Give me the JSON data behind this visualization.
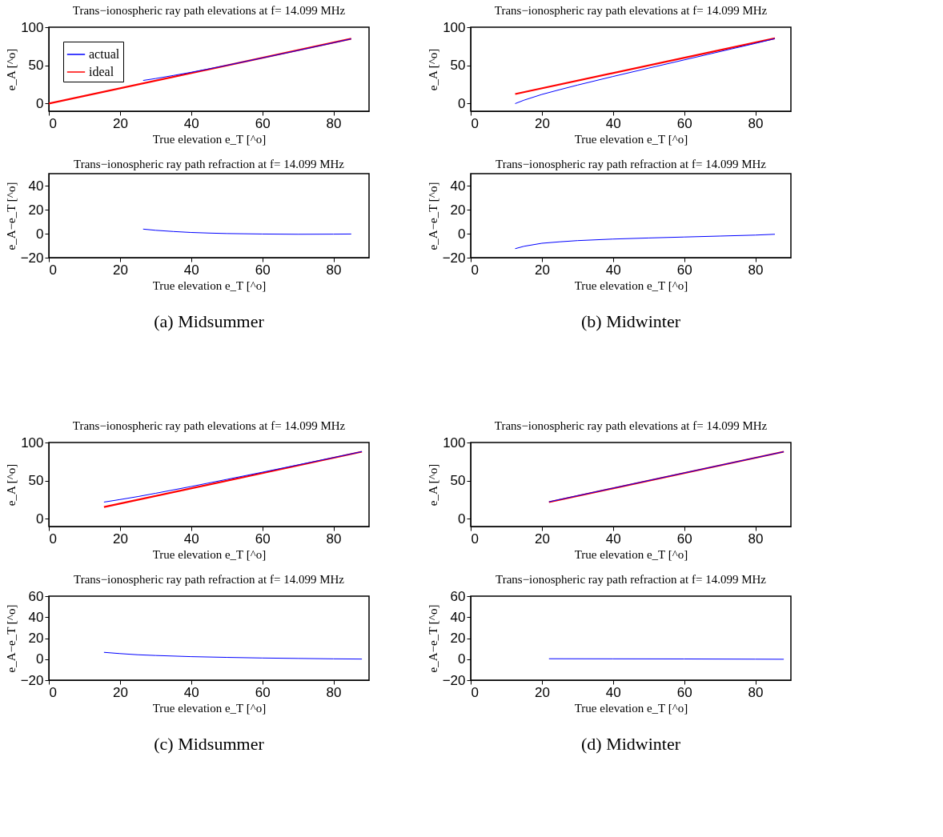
{
  "chart_data": [
    {
      "type": "line",
      "title": "Trans−ionospheric ray path elevations at f= 14.099 MHz",
      "xlabel": "True elevation e_T [^o]",
      "ylabel": "e_A [^o]",
      "xlim": [
        0,
        90
      ],
      "ylim": [
        -10,
        100
      ],
      "xticks": [
        0,
        20,
        40,
        60,
        80
      ],
      "yticks": [
        0,
        50,
        100
      ],
      "grid": false,
      "legend": "top left",
      "series": [
        {
          "name": "actual",
          "color": "#0000ff",
          "x": [
            26.5,
            30,
            35,
            40,
            45,
            50,
            60,
            70,
            80,
            85
          ],
          "values": [
            30.3,
            32.8,
            36.8,
            41,
            45.5,
            50.1,
            59.7,
            69.5,
            79.6,
            84.7
          ]
        },
        {
          "name": "ideal",
          "color": "#ff0000",
          "x": [
            0,
            85
          ],
          "values": [
            0,
            85
          ]
        }
      ]
    },
    {
      "type": "line",
      "title": "Trans−ionospheric ray path elevations at f= 14.099 MHz",
      "xlabel": "True elevation e_T [^o]",
      "ylabel": "e_A [^o]",
      "xlim": [
        0,
        90
      ],
      "ylim": [
        -10,
        100
      ],
      "xticks": [
        0,
        20,
        40,
        60,
        80
      ],
      "yticks": [
        0,
        50,
        100
      ],
      "grid": false,
      "legend": "top left",
      "series": [
        {
          "name": "actual",
          "color": "#0000ff",
          "x": [
            12.5,
            15,
            20,
            25,
            30,
            40,
            50,
            60,
            70,
            80,
            85.5
          ],
          "values": [
            0,
            4.5,
            12,
            18.2,
            24.2,
            35.5,
            46.4,
            57.2,
            68,
            78.8,
            85
          ]
        },
        {
          "name": "ideal",
          "color": "#ff0000",
          "x": [
            12.5,
            85.5
          ],
          "values": [
            12.5,
            85.5
          ]
        }
      ]
    },
    {
      "type": "line",
      "title": "Trans−ionospheric ray path refraction at f= 14.099 MHz",
      "xlabel": "True elevation e_T [^o]",
      "ylabel": "e_A−e_T [^o]",
      "xlim": [
        0,
        90
      ],
      "ylim": [
        -20,
        50
      ],
      "xticks": [
        0,
        20,
        40,
        60,
        80
      ],
      "yticks": [
        -20,
        0,
        20,
        40
      ],
      "grid": false,
      "annotations": [
        "(a) Midsummer"
      ],
      "series": [
        {
          "color": "#0000ff",
          "x": [
            26.5,
            30,
            35,
            40,
            45,
            50,
            60,
            70,
            80,
            85
          ],
          "values": [
            3.8,
            2.8,
            1.8,
            1,
            0.5,
            0.1,
            -0.3,
            -0.5,
            -0.4,
            -0.3
          ]
        }
      ]
    },
    {
      "type": "line",
      "title": "Trans−ionospheric ray path refraction at f= 14.099 MHz",
      "xlabel": "True elevation e_T [^o]",
      "ylabel": "e_A−e_T [^o]",
      "xlim": [
        0,
        90
      ],
      "ylim": [
        -20,
        50
      ],
      "xticks": [
        0,
        20,
        40,
        60,
        80
      ],
      "yticks": [
        -20,
        0,
        20,
        40
      ],
      "grid": false,
      "annotations": [
        "(b) Midwinter"
      ],
      "series": [
        {
          "color": "#0000ff",
          "x": [
            12.5,
            15,
            20,
            25,
            30,
            40,
            50,
            60,
            70,
            80,
            85.5
          ],
          "values": [
            -12.5,
            -10.5,
            -8,
            -6.8,
            -5.8,
            -4.5,
            -3.6,
            -2.8,
            -2,
            -1.2,
            -0.5
          ]
        }
      ]
    },
    {
      "type": "line",
      "title": "Trans−ionospheric ray path elevations at f= 14.099 MHz",
      "xlabel": "True elevation e_T [^o]",
      "ylabel": "e_A [^o]",
      "xlim": [
        0,
        90
      ],
      "ylim": [
        -10,
        100
      ],
      "xticks": [
        0,
        20,
        40,
        60,
        80
      ],
      "yticks": [
        0,
        50,
        100
      ],
      "grid": false,
      "legend": "top left",
      "series": [
        {
          "name": "actual",
          "color": "#0000ff",
          "x": [
            15.5,
            20,
            25,
            30,
            40,
            50,
            60,
            70,
            80,
            88
          ],
          "values": [
            22,
            25.3,
            29.2,
            33.5,
            42.4,
            51.7,
            61.1,
            70.7,
            80.3,
            88.1
          ]
        },
        {
          "name": "ideal",
          "color": "#ff0000",
          "x": [
            15.5,
            88
          ],
          "values": [
            15.5,
            88
          ]
        }
      ]
    },
    {
      "type": "line",
      "title": "Trans−ionospheric ray path elevations at f= 14.099 MHz",
      "xlabel": "True elevation e_T [^o]",
      "ylabel": "e_A [^o]",
      "xlim": [
        0,
        90
      ],
      "ylim": [
        -10,
        100
      ],
      "xticks": [
        0,
        20,
        40,
        60,
        80
      ],
      "yticks": [
        0,
        50,
        100
      ],
      "grid": false,
      "legend": "top left",
      "series": [
        {
          "name": "actual",
          "color": "#0000ff",
          "x": [
            22,
            40,
            60,
            80,
            88
          ],
          "values": [
            22.4,
            40.3,
            60.2,
            80,
            87.9
          ]
        },
        {
          "name": "ideal",
          "color": "#ff0000",
          "x": [
            22,
            88
          ],
          "values": [
            22,
            88
          ]
        }
      ]
    },
    {
      "type": "line",
      "title": "Trans−ionospheric ray path refraction at f= 14.099 MHz",
      "xlabel": "True elevation e_T [^o]",
      "ylabel": "e_A−e_T [^o]",
      "xlim": [
        0,
        90
      ],
      "ylim": [
        -20,
        60
      ],
      "xticks": [
        0,
        20,
        40,
        60,
        80
      ],
      "yticks": [
        -20,
        0,
        20,
        40,
        60
      ],
      "grid": false,
      "annotations": [
        "(c) Midsummer"
      ],
      "series": [
        {
          "color": "#0000ff",
          "x": [
            15.5,
            20,
            25,
            30,
            40,
            50,
            60,
            70,
            80,
            88
          ],
          "values": [
            6.5,
            5.3,
            4.2,
            3.5,
            2.4,
            1.7,
            1.1,
            0.7,
            0.3,
            0.1
          ]
        }
      ]
    },
    {
      "type": "line",
      "title": "Trans−ionospheric ray path refraction at f= 14.099 MHz",
      "xlabel": "True elevation e_T [^o]",
      "ylabel": "e_A−e_T [^o]",
      "xlim": [
        0,
        90
      ],
      "ylim": [
        -20,
        60
      ],
      "xticks": [
        0,
        20,
        40,
        60,
        80
      ],
      "yticks": [
        -20,
        0,
        20,
        40,
        60
      ],
      "grid": false,
      "annotations": [
        "(d) Midwinter"
      ],
      "series": [
        {
          "color": "#0000ff",
          "x": [
            22,
            40,
            60,
            80,
            88
          ],
          "values": [
            0.4,
            0.3,
            0.2,
            0,
            -0.1
          ]
        }
      ]
    }
  ]
}
